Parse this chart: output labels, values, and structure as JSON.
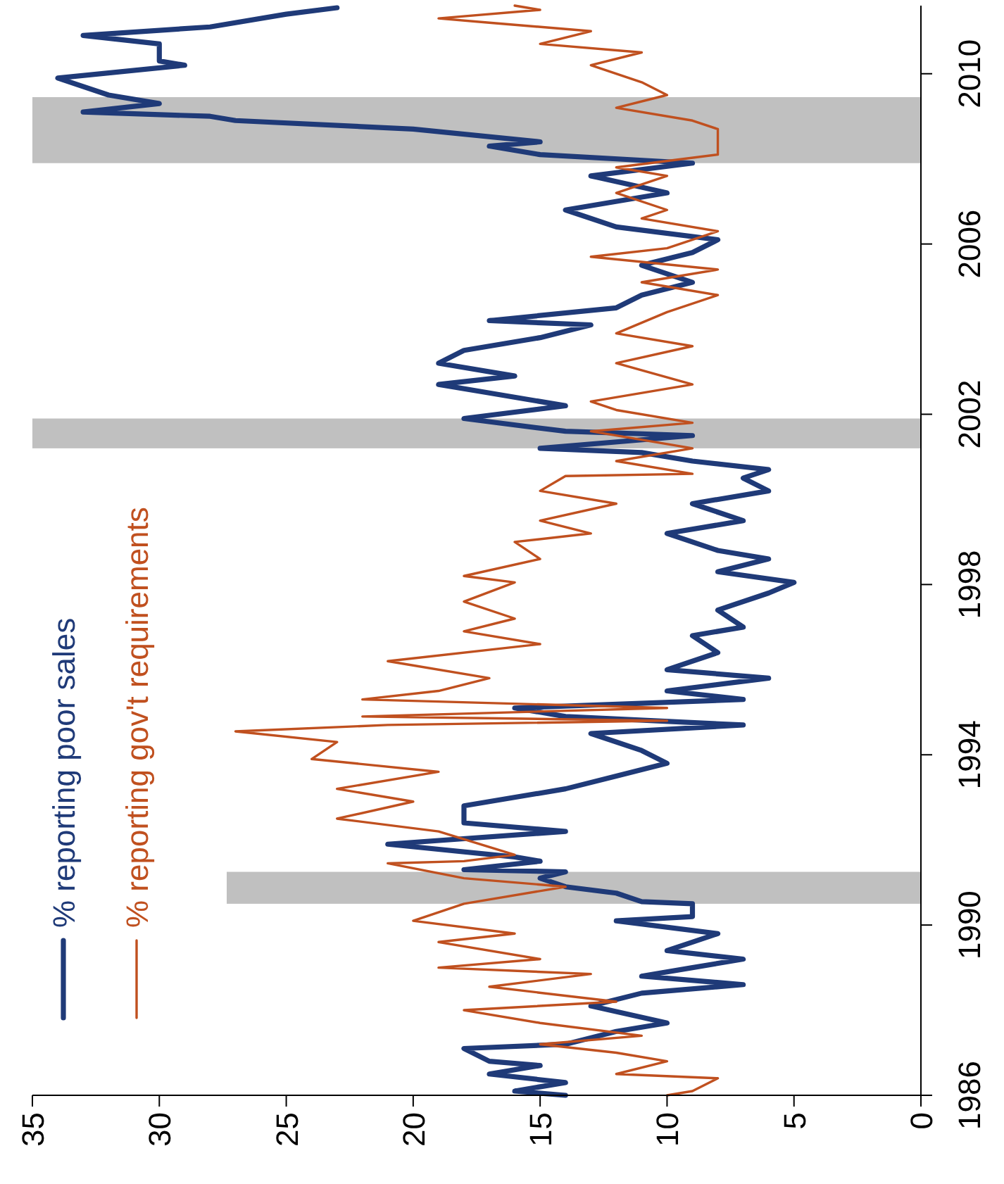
{
  "chart_data": {
    "type": "line",
    "xlim": [
      35,
      0
    ],
    "xticks": [
      35,
      30,
      25,
      20,
      15,
      10,
      5,
      0
    ],
    "ylim": [
      1986,
      2011.6
    ],
    "yticks": [
      1986,
      1990,
      1994,
      1998,
      2002,
      2006,
      2010
    ],
    "grid": false,
    "legend": "bottom left",
    "marker": "none",
    "line_style": "solid",
    "bands": [
      {
        "axis": "y",
        "from": 1990.5,
        "to": 1991.25,
        "color": "#c0c0c0"
      },
      {
        "axis": "y",
        "from": 2001.2,
        "to": 2001.9,
        "color": "#c0c0c0"
      },
      {
        "axis": "y",
        "from": 2007.9,
        "to": 2009.45,
        "color": "#c0c0c0"
      }
    ],
    "series": [
      {
        "name": "% reporting poor sales",
        "color": "#1f3a78",
        "values": [
          1986.0,
          1986.1,
          1986.3,
          1986.5,
          1986.7,
          1986.8,
          1987.1,
          1987.2,
          1987.5,
          1987.7,
          1988.1,
          1988.4,
          1988.6,
          1988.8,
          1989.0,
          1989.2,
          1989.4,
          1989.6,
          1989.8,
          1990.1,
          1990.2,
          1990.5,
          1990.55,
          1990.75,
          1990.9,
          1991.1,
          1991.25,
          1991.3,
          1991.5,
          1991.6,
          1991.9,
          1992.2,
          1992.4,
          1992.8,
          1993.2,
          1993.5,
          1993.8,
          1994.1,
          1994.5,
          1994.7,
          1994.9,
          1995.1,
          1995.3,
          1995.5,
          1995.8,
          1996.0,
          1996.4,
          1996.8,
          1997.0,
          1997.4,
          1997.8,
          1998.05,
          1998.3,
          1998.6,
          1998.8,
          1999.2,
          1999.5,
          1999.9,
          2000.2,
          2000.5,
          2000.7,
          2000.9,
          2001.1,
          2001.2,
          2001.5,
          2001.6,
          2001.9,
          2002.2,
          2002.5,
          2002.7,
          2002.9,
          2003.2,
          2003.5,
          2003.8,
          2004.1,
          2004.2,
          2004.5,
          2004.8,
          2005.1,
          2005.5,
          2005.8,
          2006.1,
          2006.4,
          2006.8,
          2007.2,
          2007.6,
          2007.9,
          2008.1,
          2008.3,
          2008.4,
          2008.7,
          2008.9,
          2009.0,
          2009.1,
          2009.3,
          2009.5,
          2009.9,
          2010.2,
          2010.3,
          2010.7,
          2010.9,
          2011.1,
          2011.4,
          2011.55
        ],
        "x": [
          14,
          16,
          14,
          17,
          15,
          17,
          18,
          14,
          12,
          10,
          13,
          11,
          7,
          11,
          9,
          7,
          10,
          9,
          8,
          12,
          9,
          9,
          11,
          12,
          14,
          15,
          14,
          18,
          15,
          16,
          21,
          14,
          18,
          18,
          14,
          12,
          10,
          11,
          13,
          7,
          14,
          16,
          7,
          10,
          6,
          10,
          8,
          9,
          7,
          8,
          6,
          5,
          8,
          6,
          8,
          10,
          7,
          9,
          6,
          7,
          6,
          9,
          11,
          15,
          9,
          14,
          18,
          14,
          17,
          19,
          16,
          19,
          18,
          15,
          13,
          17,
          12,
          11,
          9,
          11,
          9,
          8,
          12,
          14,
          10,
          13,
          9,
          15,
          17,
          15,
          20,
          27,
          28,
          33,
          30,
          32,
          34,
          29,
          30,
          30,
          33,
          28,
          25,
          23
        ]
      },
      {
        "name": "% reporting gov't requirements",
        "color": "#c0501f",
        "values": [
          1986.0,
          1986.1,
          1986.4,
          1986.5,
          1986.8,
          1987.0,
          1987.2,
          1987.4,
          1987.7,
          1988.0,
          1988.2,
          1988.55,
          1988.85,
          1989.0,
          1989.2,
          1989.6,
          1989.8,
          1990.1,
          1990.5,
          1990.9,
          1991.1,
          1991.45,
          1991.5,
          1991.65,
          1992.2,
          1992.5,
          1992.9,
          1993.2,
          1993.6,
          1993.9,
          1994.3,
          1994.55,
          1994.7,
          1994.8,
          1994.9,
          1995.1,
          1995.3,
          1995.5,
          1995.8,
          1996.2,
          1996.6,
          1996.9,
          1997.2,
          1997.6,
          1998.05,
          1998.2,
          1998.6,
          1999.0,
          1999.2,
          1999.5,
          1999.9,
          2000.2,
          2000.55,
          2000.6,
          2000.9,
          2001.2,
          2001.6,
          2001.8,
          2002.1,
          2002.3,
          2002.7,
          2003.2,
          2003.6,
          2003.9,
          2004.4,
          2004.8,
          2005.1,
          2005.4,
          2005.7,
          2005.9,
          2006.3,
          2006.6,
          2006.8,
          2007.2,
          2007.6,
          2007.8,
          2008.1,
          2008.7,
          2008.9,
          2009.2,
          2009.5,
          2009.8,
          2010.2,
          2010.5,
          2010.7,
          2011.0,
          2011.2,
          2011.3,
          2011.5,
          2011.6
        ],
        "x": [
          10,
          9,
          8,
          12,
          10,
          12,
          15,
          11,
          15,
          18,
          12,
          17,
          13,
          19,
          15,
          19,
          16,
          20,
          18,
          14,
          18,
          21,
          18,
          16,
          19,
          23,
          20,
          23,
          19,
          24,
          23,
          27,
          21,
          10,
          22,
          10,
          22,
          19,
          17,
          21,
          15,
          18,
          16,
          18,
          16,
          18,
          15,
          16,
          13,
          15,
          12,
          15,
          14,
          9,
          12,
          9,
          13,
          9,
          12,
          13,
          9,
          12,
          9,
          12,
          10,
          8,
          11,
          8,
          13,
          10,
          8,
          11,
          10,
          12,
          10,
          12,
          8,
          8,
          9,
          12,
          10,
          11,
          13,
          11,
          15,
          13,
          17,
          19,
          15,
          16
        ]
      }
    ]
  }
}
